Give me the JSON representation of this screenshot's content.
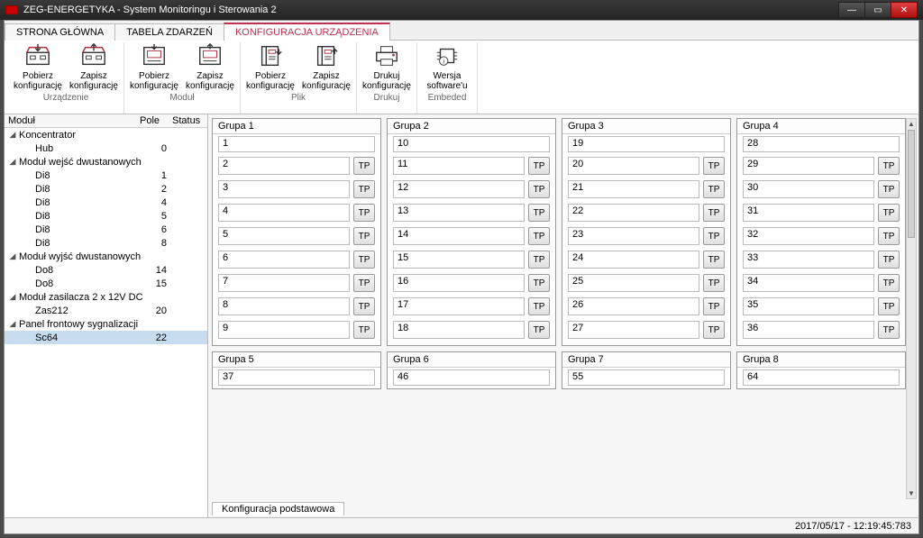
{
  "window": {
    "title": "ZEG-ENERGETYKA - System Monitoringu i Sterowania 2"
  },
  "tabs": {
    "main": "STRONA GŁÓWNA",
    "events": "TABELA ZDARZEŃ",
    "config": "KONFIGURACJA URZĄDZENIA"
  },
  "ribbon": {
    "group1": {
      "label": "Urządzenie",
      "btn1": "Pobierz konfigurację",
      "btn2": "Zapisz konfigurację"
    },
    "group2": {
      "label": "Moduł",
      "btn1": "Pobierz konfigurację",
      "btn2": "Zapisz konfigurację"
    },
    "group3": {
      "label": "Plik",
      "btn1": "Pobierz konfigurację",
      "btn2": "Zapisz konfigurację"
    },
    "group4": {
      "label": "Drukuj",
      "btn1": "Drukuj konfigurację"
    },
    "group5": {
      "label": "Embeded",
      "btn1": "Wersja software'u"
    }
  },
  "tree": {
    "headers": {
      "col1": "Moduł",
      "col2": "Pole",
      "col3": "Status"
    },
    "koncentrator": "Koncentrator",
    "hub": {
      "label": "Hub",
      "val": "0"
    },
    "inMod": "Moduł wejść dwustanowych",
    "di8_1": {
      "label": "Di8",
      "val": "1"
    },
    "di8_2": {
      "label": "Di8",
      "val": "2"
    },
    "di8_3": {
      "label": "Di8",
      "val": "4"
    },
    "di8_4": {
      "label": "Di8",
      "val": "5"
    },
    "di8_5": {
      "label": "Di8",
      "val": "6"
    },
    "di8_6": {
      "label": "Di8",
      "val": "8"
    },
    "outMod": "Moduł wyjść dwustanowych",
    "do8_1": {
      "label": "Do8",
      "val": "14"
    },
    "do8_2": {
      "label": "Do8",
      "val": "15"
    },
    "psMod": "Moduł zasilacza 2 x 12V DC",
    "zas": {
      "label": "Zas212",
      "val": "20"
    },
    "panel": "Panel frontowy sygnalizacji",
    "sc64": {
      "label": "Sc64",
      "val": "22"
    }
  },
  "groups": {
    "tp": "TP",
    "g1": {
      "title": "Grupa 1",
      "first": "1",
      "rows": [
        "2",
        "3",
        "4",
        "5",
        "6",
        "7",
        "8",
        "9"
      ]
    },
    "g2": {
      "title": "Grupa 2",
      "first": "10",
      "rows": [
        "11",
        "12",
        "13",
        "14",
        "15",
        "16",
        "17",
        "18"
      ]
    },
    "g3": {
      "title": "Grupa 3",
      "first": "19",
      "rows": [
        "20",
        "21",
        "22",
        "23",
        "24",
        "25",
        "26",
        "27"
      ]
    },
    "g4": {
      "title": "Grupa 4",
      "first": "28",
      "rows": [
        "29",
        "30",
        "31",
        "32",
        "33",
        "34",
        "35",
        "36"
      ]
    },
    "g5": {
      "title": "Grupa 5",
      "first": "37"
    },
    "g6": {
      "title": "Grupa 6",
      "first": "46"
    },
    "g7": {
      "title": "Grupa 7",
      "first": "55"
    },
    "g8": {
      "title": "Grupa 8",
      "first": "64"
    }
  },
  "bottomTab": "Konfiguracja podstawowa",
  "status": {
    "datetime": "2017/05/17 - 12:19:45:783"
  }
}
